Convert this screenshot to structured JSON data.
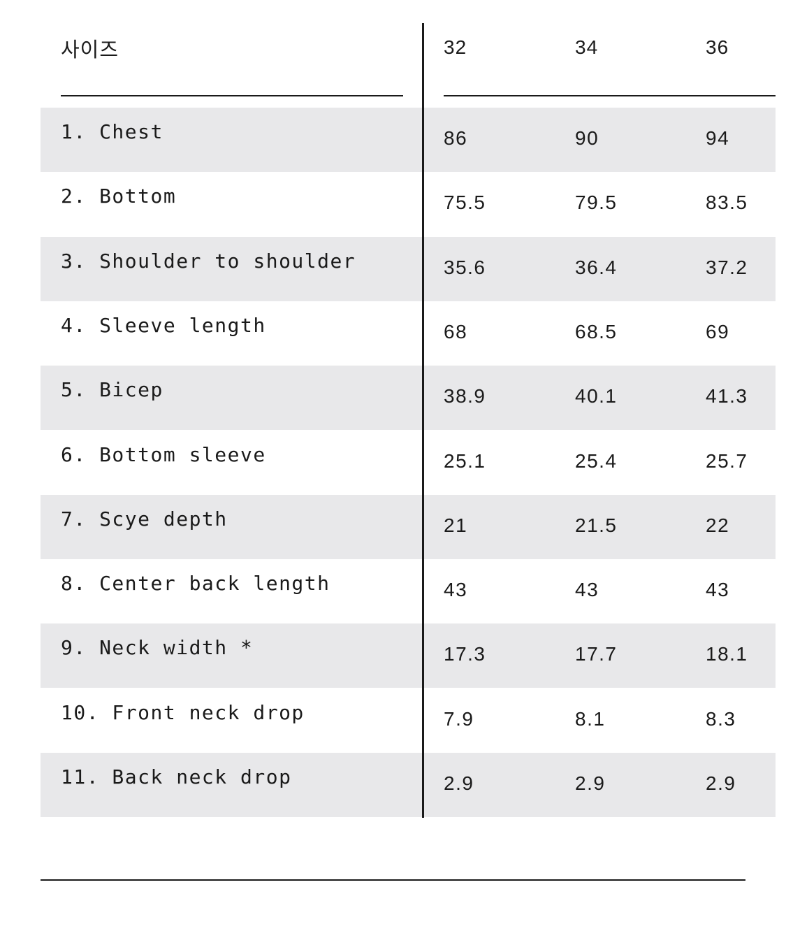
{
  "table": {
    "header_label": "사이즈",
    "sizes": [
      "32",
      "34",
      "36"
    ],
    "rows": [
      {
        "label": "1. Chest",
        "values": [
          "86",
          "90",
          "94"
        ]
      },
      {
        "label": "2. Bottom",
        "values": [
          "75.5",
          "79.5",
          "83.5"
        ]
      },
      {
        "label": "3. Shoulder to shoulder",
        "values": [
          "35.6",
          "36.4",
          "37.2"
        ]
      },
      {
        "label": "4. Sleeve length",
        "values": [
          "68",
          "68.5",
          "69"
        ]
      },
      {
        "label": "5. Bicep",
        "values": [
          "38.9",
          "40.1",
          "41.3"
        ]
      },
      {
        "label": "6. Bottom sleeve",
        "values": [
          "25.1",
          "25.4",
          "25.7"
        ]
      },
      {
        "label": "7. Scye depth",
        "values": [
          "21",
          "21.5",
          "22"
        ]
      },
      {
        "label": "8. Center back length",
        "values": [
          "43",
          "43",
          "43"
        ]
      },
      {
        "label": "9. Neck width *",
        "values": [
          "17.3",
          "17.7",
          "18.1"
        ]
      },
      {
        "label": "10. Front neck drop",
        "values": [
          "7.9",
          "8.1",
          "8.3"
        ]
      },
      {
        "label": "11. Back neck drop",
        "values": [
          "2.9",
          "2.9",
          "2.9"
        ]
      }
    ]
  },
  "colors": {
    "text": "#1a1a1a",
    "row_shade": "#e8e8ea",
    "background": "#ffffff"
  }
}
